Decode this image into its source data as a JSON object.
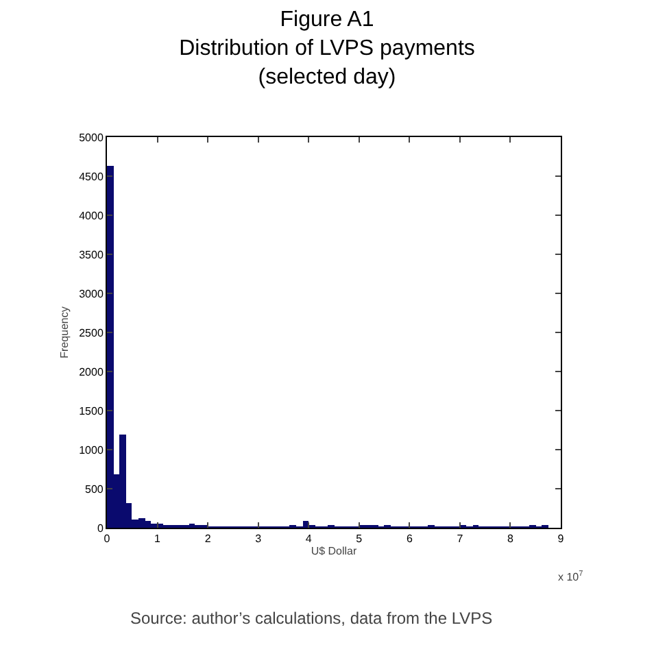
{
  "chart_data": {
    "type": "histogram",
    "title": "Figure A1\nDistribution of LVPS payments\n(selected day)",
    "xlabel": "U$ Dollar",
    "ylabel": "Frequency",
    "bins": [
      0,
      0.125,
      0.25,
      0.375,
      0.5,
      0.625,
      0.75,
      0.875,
      1,
      1.125,
      1.25,
      1.375,
      1.5,
      1.625,
      1.75,
      1.875,
      2,
      2.125,
      2.25,
      2.375,
      2.5,
      2.625,
      2.75,
      2.875,
      3,
      3.125,
      3.25,
      3.375,
      3.5,
      3.625,
      3.75,
      3.875,
      4,
      4.125,
      4.25,
      4.375,
      4.5,
      4.625,
      4.75,
      4.875,
      5,
      5.125,
      5.25,
      5.375,
      5.5,
      5.625,
      5.75,
      5.875,
      6,
      6.125,
      6.25,
      6.375,
      6.5,
      6.625,
      6.75,
      6.875,
      7,
      7.125,
      7.25,
      7.375,
      7.5,
      7.625,
      7.75,
      7.875,
      8,
      8.125,
      8.25,
      8.375,
      8.5,
      8.625,
      8.75
    ],
    "values": [
      4630,
      680,
      1200,
      310,
      100,
      120,
      90,
      60,
      60,
      20,
      40,
      20,
      20,
      60,
      20,
      20,
      10,
      10,
      10,
      10,
      10,
      10,
      10,
      10,
      10,
      10,
      10,
      10,
      10,
      30,
      10,
      90,
      30,
      10,
      10,
      20,
      10,
      10,
      10,
      10,
      20,
      20,
      20,
      10,
      20,
      10,
      10,
      10,
      10,
      10,
      10,
      20,
      10,
      10,
      10,
      10,
      20,
      10,
      20,
      10,
      10,
      10,
      10,
      10,
      10,
      10,
      10,
      20,
      10,
      20
    ],
    "color": "#0a0a6e",
    "xlim": [
      0,
      9
    ],
    "xticks": [
      0,
      1,
      2,
      3,
      4,
      5,
      6,
      7,
      8,
      9
    ],
    "ylim": [
      0,
      5000
    ],
    "yticks": [
      0,
      500,
      1000,
      1500,
      2000,
      2500,
      3000,
      3500,
      4000,
      4500,
      5000
    ],
    "grid": false,
    "annotations": [
      "x 10$^{7}$",
      "Source: author’s calculations, data from the LVPS"
    ]
  }
}
